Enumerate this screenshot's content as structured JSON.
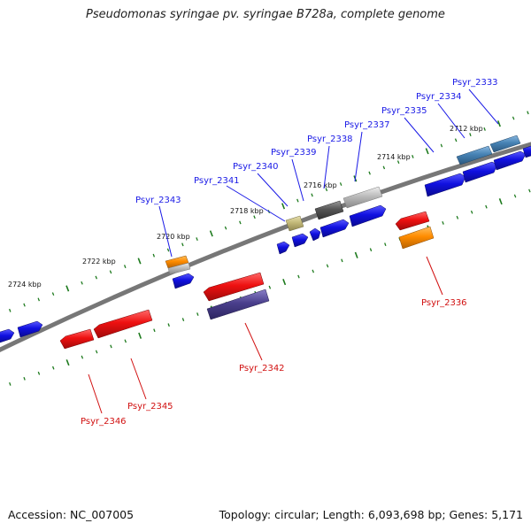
{
  "title": "Pseudomonas syringae pv. syringae B728a, complete genome",
  "footer": {
    "accession": "Accession: NC_007005",
    "summary": "Topology: circular; Length: 6,093,698 bp; Genes: 5,171"
  },
  "colors": {
    "backbone": "#777777",
    "tick": "#1d7a1d",
    "gene_blue": "#1010e0",
    "gene_red": "#ee1111",
    "gene_orange": "#ff8c00",
    "gene_gray": "#bbbbbb",
    "gene_dark_gray": "#555555",
    "gene_khaki": "#c2b878",
    "gene_steel": "#4682b4",
    "gene_slate": "#4a3f8c",
    "label_blue": "#1a1ae6",
    "label_red": "#d11010"
  },
  "ticks": [
    "2712 kbp",
    "2714 kbp",
    "2716 kbp",
    "2718 kbp",
    "2720 kbp",
    "2722 kbp",
    "2724 kbp"
  ],
  "genes": [
    {
      "label": "Psyr_2333",
      "strand": "top"
    },
    {
      "label": "Psyr_2334",
      "strand": "top"
    },
    {
      "label": "Psyr_2335",
      "strand": "top"
    },
    {
      "label": "Psyr_2336",
      "strand": "bottom"
    },
    {
      "label": "Psyr_2337",
      "strand": "top"
    },
    {
      "label": "Psyr_2338",
      "strand": "top"
    },
    {
      "label": "Psyr_2339",
      "strand": "top"
    },
    {
      "label": "Psyr_2340",
      "strand": "top"
    },
    {
      "label": "Psyr_2341",
      "strand": "top"
    },
    {
      "label": "Psyr_2342",
      "strand": "bottom"
    },
    {
      "label": "Psyr_2343",
      "strand": "top"
    },
    {
      "label": "Psyr_2345",
      "strand": "bottom"
    },
    {
      "label": "Psyr_2346",
      "strand": "bottom"
    }
  ]
}
